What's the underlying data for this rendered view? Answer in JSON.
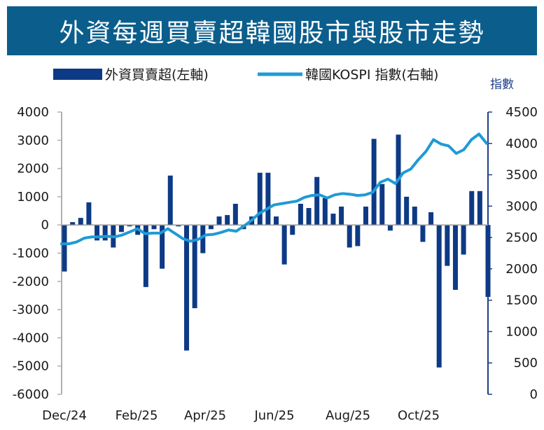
{
  "title": "外資每週買賣超韓國股市與股市走勢",
  "chart_data": {
    "type": "bar+line",
    "title": "外資每週買賣超韓國股市與股市走勢",
    "right_axis_unit": "指數",
    "x_tick_labels": [
      "Dec/24",
      "Feb/25",
      "Apr/25",
      "Jun/25",
      "Aug/25",
      "Oct/25"
    ],
    "left_axis": {
      "ylim": [
        -6000,
        4000
      ],
      "ticks": [
        4000,
        3000,
        2000,
        1000,
        0,
        -1000,
        -2000,
        -3000,
        -4000,
        -5000,
        -6000
      ]
    },
    "right_axis": {
      "ylim": [
        0,
        4500
      ],
      "ticks": [
        4500,
        4000,
        3500,
        3000,
        2500,
        2000,
        1500,
        1000,
        500,
        0
      ]
    },
    "series": [
      {
        "name": "外資買賣超(左軸)",
        "type": "bar",
        "axis": "left",
        "color": "#0d3a85",
        "values": [
          -1650,
          100,
          250,
          800,
          -550,
          -550,
          -800,
          -250,
          -50,
          -350,
          -2200,
          -150,
          -1550,
          1750,
          -50,
          -4450,
          -2950,
          -1000,
          -150,
          300,
          350,
          750,
          -150,
          300,
          1850,
          1850,
          300,
          -1400,
          -350,
          750,
          600,
          1700,
          950,
          400,
          650,
          -800,
          -750,
          650,
          3050,
          1450,
          -200,
          3200,
          1000,
          650,
          -600,
          450,
          -5050,
          -1450,
          -2300,
          -1050,
          1200,
          1200,
          -2550
        ]
      },
      {
        "name": "韓國KOSPI 指數(右軸)",
        "type": "line",
        "axis": "right",
        "color": "#1f9ad6",
        "values": [
          2400,
          2400,
          2430,
          2490,
          2510,
          2510,
          2520,
          2510,
          2540,
          2590,
          2640,
          2560,
          2570,
          2570,
          2640,
          2560,
          2480,
          2440,
          2470,
          2540,
          2550,
          2580,
          2620,
          2600,
          2680,
          2770,
          2880,
          2950,
          3020,
          3040,
          3060,
          3080,
          3140,
          3170,
          3180,
          3130,
          3180,
          3200,
          3190,
          3170,
          3180,
          3220,
          3380,
          3430,
          3360,
          3530,
          3590,
          3740,
          3870,
          4060,
          3990,
          3960,
          3840,
          3900,
          4060,
          4150,
          4000
        ]
      }
    ]
  }
}
